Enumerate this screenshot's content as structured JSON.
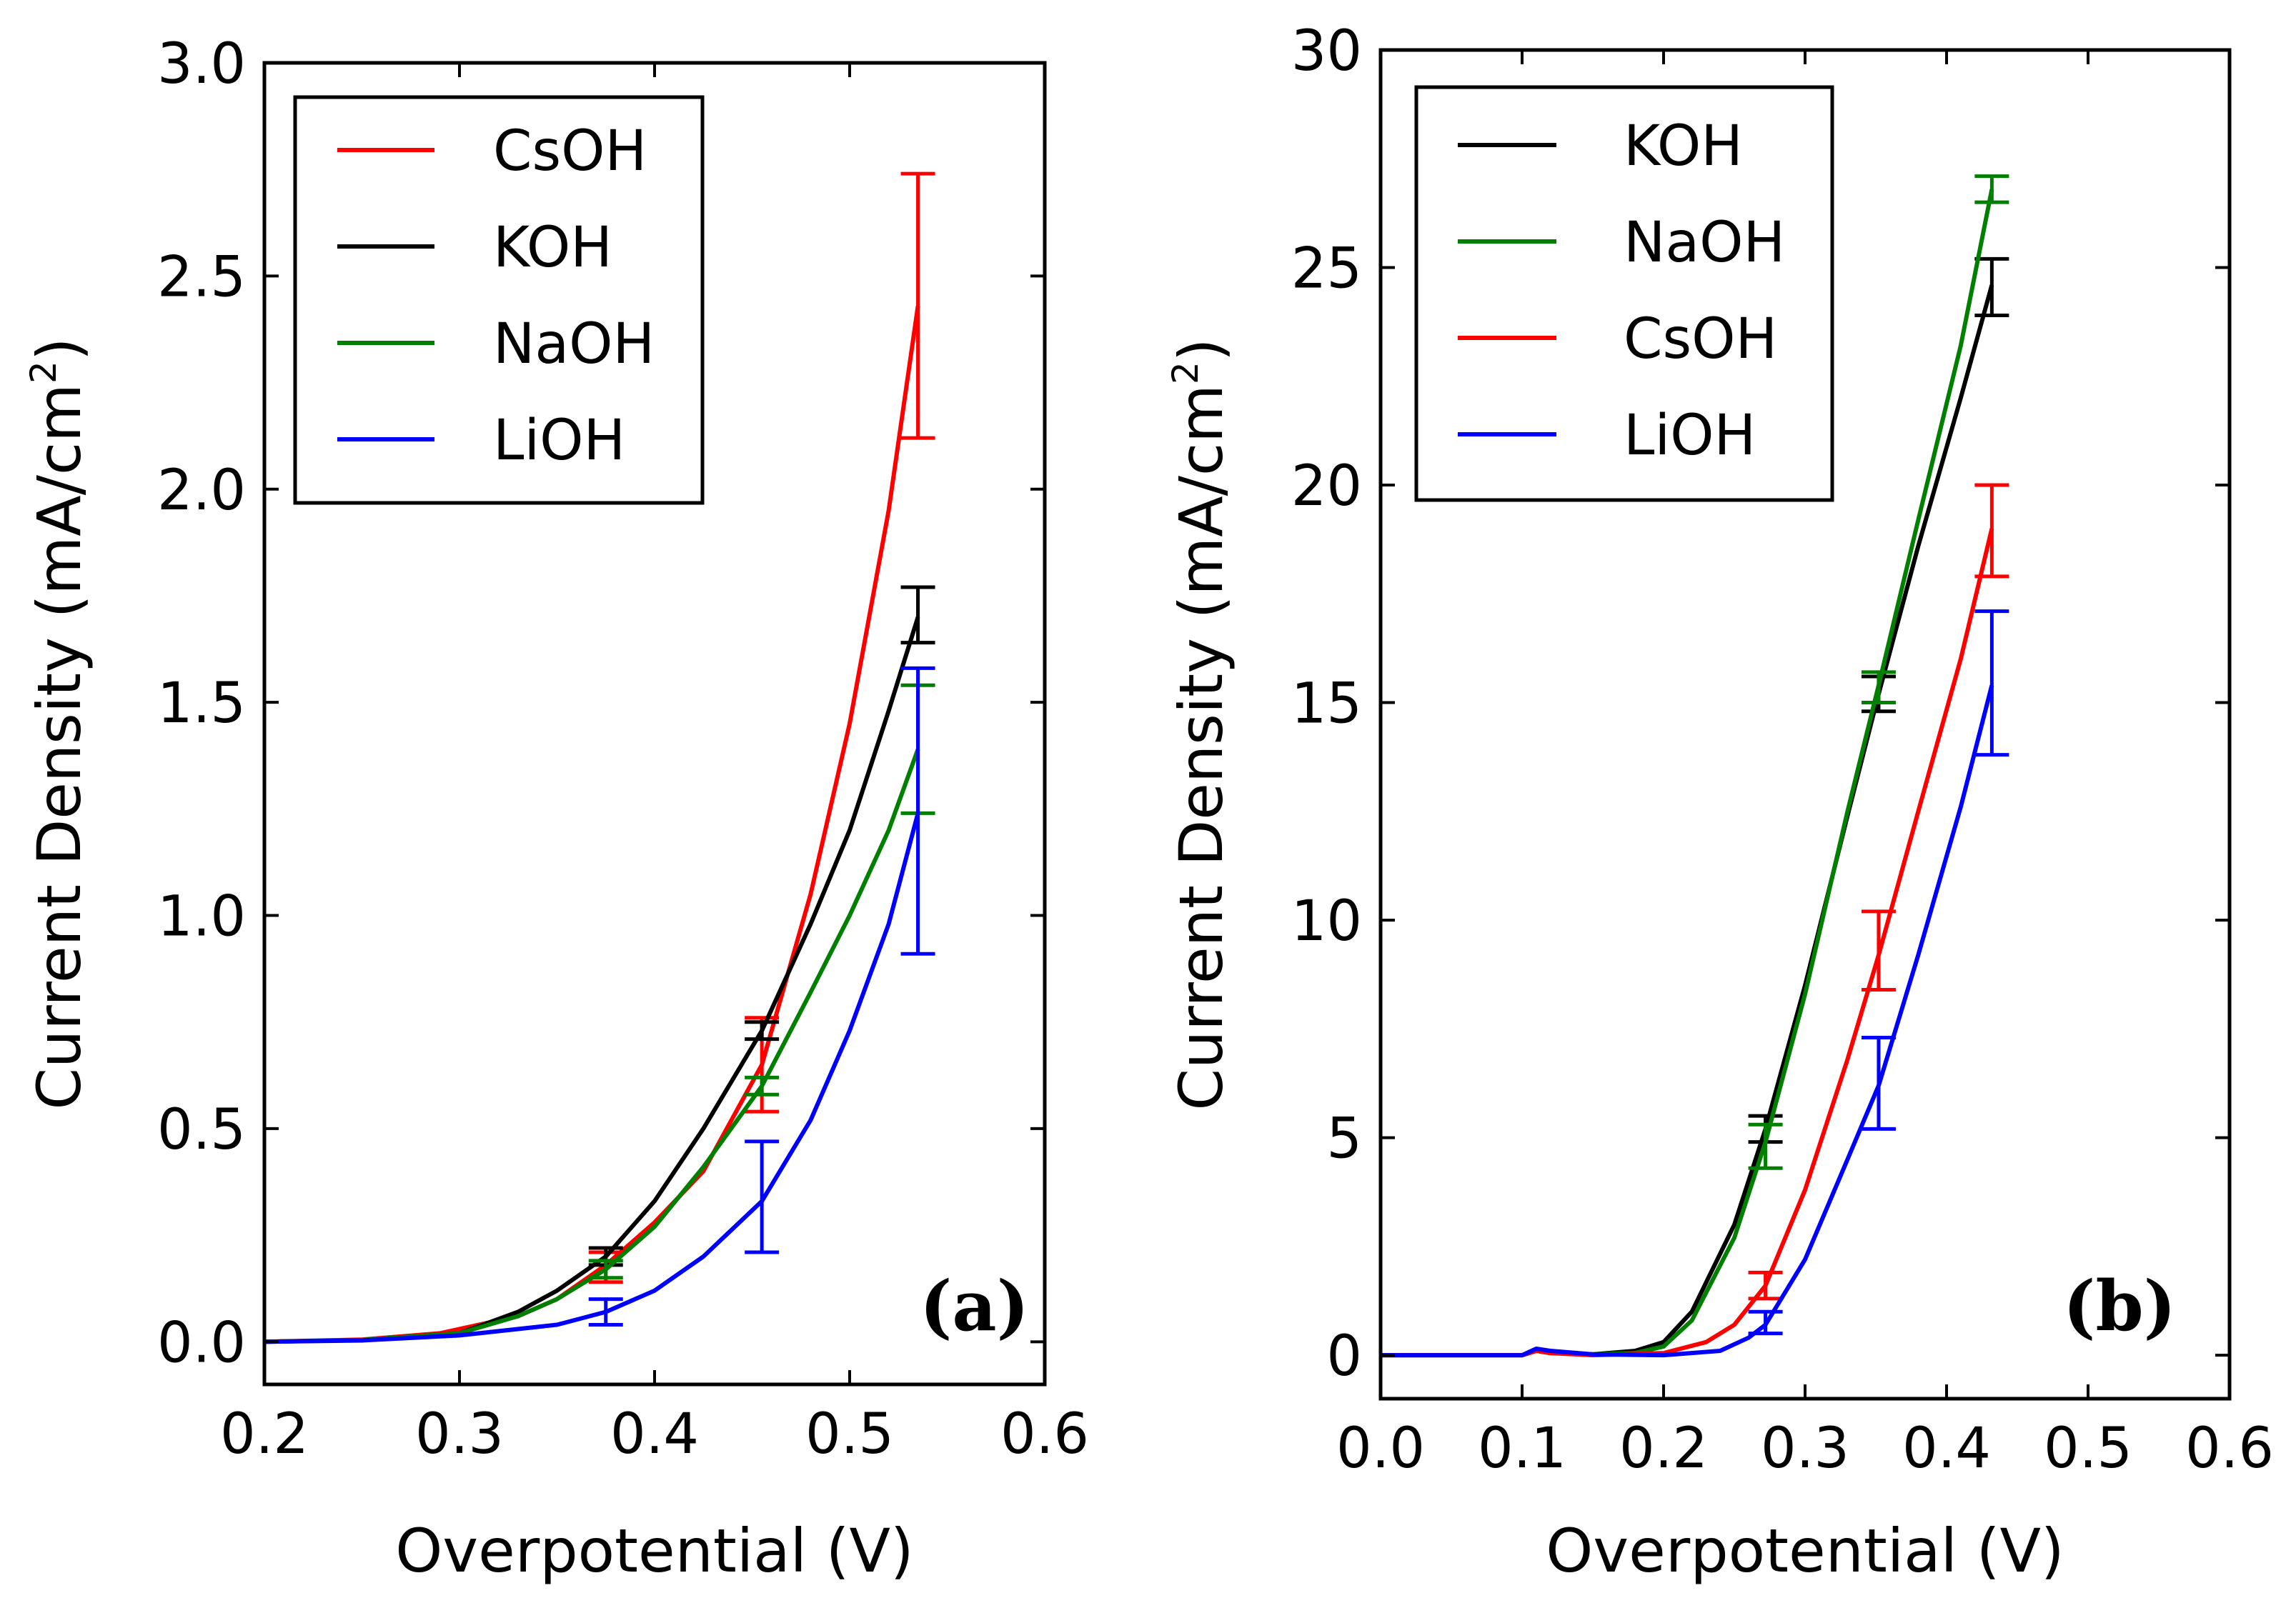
{
  "chart_data": [
    {
      "type": "line",
      "panel_label": "(a)",
      "xlabel": "Overpotential (V)",
      "ylabel_main": "Current Density (mA/cm",
      "ylabel_sup": "2",
      "ylabel_end": ")",
      "xlim": [
        0.2,
        0.6
      ],
      "ylim": [
        -0.1,
        3.0
      ],
      "xticks": [
        0.2,
        0.3,
        0.4,
        0.5,
        0.6
      ],
      "xtick_labels": [
        "0.2",
        "0.3",
        "0.4",
        "0.5",
        "0.6"
      ],
      "yticks": [
        0.0,
        0.5,
        1.0,
        1.5,
        2.0,
        2.5,
        3.0
      ],
      "ytick_labels": [
        "0.0",
        "0.5",
        "1.0",
        "1.5",
        "2.0",
        "2.5",
        "3.0"
      ],
      "legend_position": "top-left",
      "series": [
        {
          "name": "CsOH",
          "color": "#ff0000",
          "curve": {
            "x": [
              0.2,
              0.25,
              0.29,
              0.3,
              0.33,
              0.35,
              0.375,
              0.4,
              0.425,
              0.455,
              0.48,
              0.5,
              0.52,
              0.535
            ],
            "y": [
              0.0,
              0.005,
              0.02,
              0.03,
              0.06,
              0.1,
              0.18,
              0.28,
              0.4,
              0.65,
              1.05,
              1.45,
              1.95,
              2.43
            ]
          },
          "error_bars": [
            {
              "x": 0.375,
              "y": 0.18,
              "low": 0.14,
              "high": 0.21
            },
            {
              "x": 0.455,
              "y": 0.65,
              "low": 0.54,
              "high": 0.76
            },
            {
              "x": 0.535,
              "y": 2.43,
              "low": 2.12,
              "high": 2.74
            }
          ]
        },
        {
          "name": "KOH",
          "color": "#000000",
          "curve": {
            "x": [
              0.2,
              0.25,
              0.3,
              0.33,
              0.35,
              0.375,
              0.4,
              0.425,
              0.455,
              0.48,
              0.5,
              0.52,
              0.535
            ],
            "y": [
              0.0,
              0.004,
              0.02,
              0.07,
              0.12,
              0.2,
              0.33,
              0.5,
              0.73,
              0.98,
              1.2,
              1.48,
              1.7
            ]
          },
          "error_bars": [
            {
              "x": 0.375,
              "y": 0.2,
              "low": 0.18,
              "high": 0.22
            },
            {
              "x": 0.455,
              "y": 0.73,
              "low": 0.71,
              "high": 0.75
            },
            {
              "x": 0.535,
              "y": 1.7,
              "low": 1.64,
              "high": 1.77
            }
          ]
        },
        {
          "name": "NaOH",
          "color": "#007f00",
          "curve": {
            "x": [
              0.2,
              0.25,
              0.3,
              0.33,
              0.35,
              0.375,
              0.4,
              0.425,
              0.455,
              0.48,
              0.5,
              0.52,
              0.535
            ],
            "y": [
              0.0,
              0.004,
              0.02,
              0.06,
              0.1,
              0.17,
              0.27,
              0.41,
              0.6,
              0.82,
              1.0,
              1.2,
              1.39
            ]
          },
          "error_bars": [
            {
              "x": 0.375,
              "y": 0.17,
              "low": 0.15,
              "high": 0.19
            },
            {
              "x": 0.455,
              "y": 0.6,
              "low": 0.58,
              "high": 0.62
            },
            {
              "x": 0.535,
              "y": 1.39,
              "low": 1.24,
              "high": 1.54
            }
          ]
        },
        {
          "name": "LiOH",
          "color": "#0000ff",
          "curve": {
            "x": [
              0.2,
              0.25,
              0.3,
              0.35,
              0.375,
              0.4,
              0.425,
              0.455,
              0.48,
              0.5,
              0.52,
              0.535
            ],
            "y": [
              0.0,
              0.003,
              0.015,
              0.04,
              0.07,
              0.12,
              0.2,
              0.33,
              0.52,
              0.73,
              0.98,
              1.24
            ]
          },
          "error_bars": [
            {
              "x": 0.375,
              "y": 0.07,
              "low": 0.04,
              "high": 0.1
            },
            {
              "x": 0.455,
              "y": 0.33,
              "low": 0.21,
              "high": 0.47
            },
            {
              "x": 0.535,
              "y": 1.24,
              "low": 0.91,
              "high": 1.58
            }
          ]
        }
      ]
    },
    {
      "type": "line",
      "panel_label": "(b)",
      "xlabel": "Overpotential (V)",
      "ylabel_main": "Current Density (mA/cm",
      "ylabel_sup": "2",
      "ylabel_end": ")",
      "xlim": [
        0.0,
        0.6
      ],
      "ylim": [
        -1,
        30
      ],
      "xticks": [
        0.0,
        0.1,
        0.2,
        0.3,
        0.4,
        0.5,
        0.6
      ],
      "xtick_labels": [
        "0.0",
        "0.1",
        "0.2",
        "0.3",
        "0.4",
        "0.5",
        "0.6"
      ],
      "yticks": [
        0,
        5,
        10,
        15,
        20,
        25,
        30
      ],
      "ytick_labels": [
        "0",
        "5",
        "10",
        "15",
        "20",
        "25",
        "30"
      ],
      "legend_position": "top-left",
      "series": [
        {
          "name": "KOH",
          "color": "#000000",
          "curve": {
            "x": [
              0.0,
              0.1,
              0.11,
              0.12,
              0.15,
              0.18,
              0.2,
              0.22,
              0.25,
              0.272,
              0.3,
              0.33,
              0.352,
              0.38,
              0.41,
              0.432
            ],
            "y": [
              0,
              0,
              0.1,
              0.05,
              0.02,
              0.1,
              0.3,
              1.0,
              3.0,
              5.2,
              8.5,
              12.4,
              15.2,
              18.6,
              22.0,
              24.6
            ]
          },
          "error_bars": [
            {
              "x": 0.272,
              "y": 5.2,
              "low": 4.9,
              "high": 5.5
            },
            {
              "x": 0.352,
              "y": 15.2,
              "low": 14.8,
              "high": 15.6
            },
            {
              "x": 0.432,
              "y": 24.6,
              "low": 23.9,
              "high": 25.2
            }
          ]
        },
        {
          "name": "NaOH",
          "color": "#007f00",
          "curve": {
            "x": [
              0.0,
              0.1,
              0.11,
              0.12,
              0.15,
              0.18,
              0.2,
              0.22,
              0.25,
              0.272,
              0.3,
              0.33,
              0.352,
              0.38,
              0.41,
              0.432
            ],
            "y": [
              0,
              0,
              0.1,
              0.05,
              0.02,
              0.05,
              0.2,
              0.8,
              2.7,
              4.9,
              8.3,
              12.5,
              15.4,
              19.2,
              23.2,
              26.8
            ]
          },
          "error_bars": [
            {
              "x": 0.272,
              "y": 4.9,
              "low": 4.3,
              "high": 5.3
            },
            {
              "x": 0.352,
              "y": 15.4,
              "low": 15.0,
              "high": 15.7
            },
            {
              "x": 0.432,
              "y": 26.8,
              "low": 26.5,
              "high": 27.1
            }
          ]
        },
        {
          "name": "CsOH",
          "color": "#ff0000",
          "curve": {
            "x": [
              0.0,
              0.1,
              0.11,
              0.12,
              0.15,
              0.2,
              0.23,
              0.25,
              0.272,
              0.3,
              0.33,
              0.352,
              0.38,
              0.41,
              0.432
            ],
            "y": [
              0,
              0,
              0.1,
              0.05,
              0.0,
              0.05,
              0.3,
              0.7,
              1.6,
              3.8,
              6.8,
              9.2,
              12.5,
              16.0,
              19.0
            ]
          },
          "error_bars": [
            {
              "x": 0.272,
              "y": 1.6,
              "low": 1.3,
              "high": 1.9
            },
            {
              "x": 0.352,
              "y": 9.2,
              "low": 8.4,
              "high": 10.2
            },
            {
              "x": 0.432,
              "y": 19.0,
              "low": 17.9,
              "high": 20.0
            }
          ]
        },
        {
          "name": "LiOH",
          "color": "#0000ff",
          "curve": {
            "x": [
              0.0,
              0.1,
              0.11,
              0.12,
              0.15,
              0.2,
              0.24,
              0.26,
              0.272,
              0.3,
              0.33,
              0.352,
              0.38,
              0.41,
              0.432
            ],
            "y": [
              0,
              0,
              0.15,
              0.1,
              0.02,
              0.0,
              0.1,
              0.4,
              0.7,
              2.2,
              4.5,
              6.2,
              9.2,
              12.6,
              15.4
            ]
          },
          "error_bars": [
            {
              "x": 0.272,
              "y": 0.7,
              "low": 0.5,
              "high": 1.0
            },
            {
              "x": 0.352,
              "y": 6.2,
              "low": 5.2,
              "high": 7.3
            },
            {
              "x": 0.432,
              "y": 15.4,
              "low": 13.8,
              "high": 17.1
            }
          ]
        }
      ]
    }
  ]
}
